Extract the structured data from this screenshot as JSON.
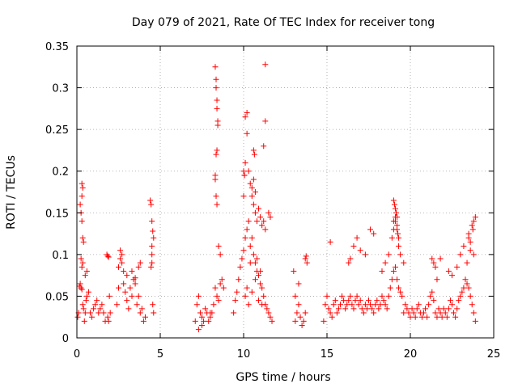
{
  "chart_data": {
    "type": "scatter",
    "title": "Day 079 of 2021, Rate Of TEC Index for receiver tong",
    "xlabel": "GPS time / hours",
    "ylabel": "ROTI / TECUs",
    "xlim": [
      0,
      25
    ],
    "ylim": [
      0,
      0.35
    ],
    "xticks": [
      "0",
      "5",
      "10",
      "15",
      "20",
      "25"
    ],
    "yticks": [
      "0",
      "0.05",
      "0.1",
      "0.15",
      "0.2",
      "0.25",
      "0.3",
      "0.35"
    ],
    "grid": true,
    "marker": "+",
    "color": "#ff0000",
    "series": [
      {
        "name": "ROTI",
        "x": [
          0.05,
          0.1,
          0.15,
          0.2,
          0.25,
          0.3,
          0.35,
          0.4,
          0.45,
          0.5,
          0.55,
          0.6,
          0.7,
          0.8,
          0.9,
          1.0,
          1.1,
          1.2,
          1.3,
          1.4,
          1.5,
          1.6,
          1.7,
          0.2,
          0.25,
          0.3,
          0.3,
          0.3,
          0.35,
          0.35,
          0.4,
          0.25,
          0.3,
          0.35,
          0.5,
          0.6,
          1.8,
          1.85,
          1.9,
          1.95,
          2.0,
          1.85,
          1.9,
          2.4,
          2.5,
          2.6,
          2.7,
          2.8,
          2.9,
          3.0,
          3.1,
          3.2,
          3.3,
          3.4,
          3.5,
          3.6,
          3.7,
          3.8,
          3.9,
          4.0,
          4.1,
          2.6,
          2.7,
          2.5,
          3.0,
          3.3,
          3.5,
          3.7,
          3.8,
          2.8,
          4.4,
          4.45,
          4.5,
          4.55,
          4.6,
          4.5,
          4.5,
          4.5,
          4.45,
          4.55,
          4.6,
          7.1,
          7.2,
          7.3,
          7.4,
          7.5,
          7.6,
          7.7,
          7.8,
          7.9,
          8.0,
          8.1,
          8.2,
          8.3,
          8.4,
          8.5,
          8.6,
          8.7,
          8.8,
          7.3,
          7.5,
          8.0,
          8.3,
          8.35,
          8.35,
          8.4,
          8.4,
          8.45,
          8.45,
          8.35,
          8.4,
          8.3,
          8.3,
          8.35,
          8.4,
          8.5,
          8.6,
          9.4,
          9.5,
          9.6,
          9.7,
          9.8,
          9.9,
          10.0,
          10.1,
          10.2,
          10.3,
          10.4,
          10.5,
          10.6,
          10.7,
          10.8,
          10.9,
          11.0,
          11.1,
          11.2,
          11.3,
          11.4,
          11.5,
          11.6,
          11.7,
          10.0,
          10.05,
          10.1,
          10.1,
          10.2,
          10.2,
          10.3,
          10.4,
          10.5,
          10.6,
          10.7,
          10.8,
          10.5,
          10.6,
          10.7,
          10.9,
          11.0,
          11.1,
          11.2,
          11.3,
          11.5,
          11.6,
          10.1,
          10.2,
          10.3,
          10.5,
          10.7,
          10.9,
          11.1,
          10.4,
          10.8,
          11.0,
          11.3,
          11.3,
          11.2,
          10.6,
          10.65,
          10.0,
          10.05,
          13.0,
          13.1,
          13.2,
          13.3,
          13.4,
          13.5,
          13.6,
          13.7,
          13.8,
          13.1,
          13.3,
          13.7,
          13.75,
          14.8,
          14.9,
          15.0,
          15.1,
          15.2,
          15.3,
          15.4,
          15.5,
          15.6,
          15.7,
          15.8,
          15.9,
          16.0,
          16.1,
          16.2,
          16.3,
          16.4,
          16.5,
          16.6,
          16.7,
          16.8,
          16.9,
          17.0,
          17.1,
          17.2,
          17.3,
          17.4,
          17.5,
          17.6,
          17.7,
          17.8,
          17.9,
          18.0,
          18.1,
          18.2,
          18.3,
          18.4,
          18.5,
          18.6,
          18.7,
          18.8,
          18.9,
          19.0,
          19.1,
          19.2,
          19.3,
          19.4,
          19.5,
          15.2,
          16.3,
          16.4,
          16.6,
          16.8,
          17.0,
          17.3,
          17.6,
          17.8,
          18.3,
          18.5,
          18.7,
          18.9,
          19.0,
          19.1,
          19.2,
          19.3,
          19.4,
          19.6,
          19.0,
          19.05,
          19.1,
          19.15,
          19.2,
          19.1,
          19.0,
          19.2,
          19.3,
          19.25,
          19.6,
          19.7,
          19.8,
          19.9,
          20.0,
          20.1,
          20.2,
          20.3,
          20.4,
          20.5,
          20.6,
          20.7,
          20.8,
          20.9,
          21.0,
          21.1,
          21.2,
          21.3,
          21.4,
          21.5,
          21.6,
          21.7,
          21.8,
          21.9,
          22.0,
          22.1,
          22.2,
          22.3,
          22.4,
          22.5,
          22.6,
          22.7,
          22.8,
          22.9,
          23.0,
          23.1,
          23.2,
          23.3,
          23.4,
          23.5,
          23.6,
          23.7,
          23.8,
          23.9,
          21.3,
          21.4,
          21.5,
          21.6,
          21.8,
          22.3,
          22.5,
          22.8,
          23.0,
          23.2,
          23.4,
          23.5,
          23.6,
          23.7,
          23.8,
          23.9,
          23.5,
          23.6,
          23.75,
          23.8
        ],
        "y": [
          0.025,
          0.03,
          0.062,
          0.065,
          0.06,
          0.058,
          0.04,
          0.035,
          0.02,
          0.03,
          0.045,
          0.05,
          0.055,
          0.03,
          0.025,
          0.035,
          0.04,
          0.045,
          0.03,
          0.035,
          0.04,
          0.03,
          0.02,
          0.16,
          0.15,
          0.14,
          0.17,
          0.185,
          0.18,
          0.12,
          0.115,
          0.095,
          0.085,
          0.09,
          0.075,
          0.08,
          0.1,
          0.098,
          0.097,
          0.05,
          0.03,
          0.025,
          0.02,
          0.04,
          0.06,
          0.095,
          0.1,
          0.08,
          0.055,
          0.045,
          0.035,
          0.06,
          0.05,
          0.07,
          0.065,
          0.04,
          0.05,
          0.03,
          0.035,
          0.02,
          0.025,
          0.105,
          0.09,
          0.085,
          0.075,
          0.08,
          0.072,
          0.085,
          0.09,
          0.065,
          0.165,
          0.16,
          0.14,
          0.128,
          0.12,
          0.11,
          0.1,
          0.09,
          0.085,
          0.04,
          0.03,
          0.02,
          0.04,
          0.05,
          0.03,
          0.025,
          0.02,
          0.035,
          0.03,
          0.02,
          0.025,
          0.03,
          0.04,
          0.06,
          0.05,
          0.045,
          0.065,
          0.07,
          0.06,
          0.01,
          0.015,
          0.03,
          0.325,
          0.31,
          0.3,
          0.285,
          0.275,
          0.26,
          0.255,
          0.22,
          0.225,
          0.195,
          0.19,
          0.17,
          0.16,
          0.11,
          0.1,
          0.03,
          0.045,
          0.055,
          0.07,
          0.085,
          0.095,
          0.105,
          0.12,
          0.13,
          0.14,
          0.11,
          0.12,
          0.1,
          0.09,
          0.08,
          0.075,
          0.065,
          0.06,
          0.05,
          0.04,
          0.035,
          0.03,
          0.025,
          0.02,
          0.17,
          0.195,
          0.21,
          0.265,
          0.27,
          0.245,
          0.2,
          0.185,
          0.17,
          0.16,
          0.15,
          0.14,
          0.18,
          0.19,
          0.175,
          0.155,
          0.145,
          0.135,
          0.14,
          0.13,
          0.15,
          0.145,
          0.05,
          0.06,
          0.04,
          0.055,
          0.07,
          0.045,
          0.04,
          0.09,
          0.095,
          0.08,
          0.328,
          0.26,
          0.23,
          0.225,
          0.22,
          0.2,
          0.195,
          0.08,
          0.02,
          0.03,
          0.04,
          0.025,
          0.015,
          0.02,
          0.03,
          0.09,
          0.05,
          0.065,
          0.095,
          0.098,
          0.02,
          0.04,
          0.05,
          0.035,
          0.03,
          0.025,
          0.04,
          0.045,
          0.03,
          0.035,
          0.04,
          0.05,
          0.045,
          0.035,
          0.04,
          0.045,
          0.05,
          0.04,
          0.035,
          0.045,
          0.05,
          0.04,
          0.045,
          0.035,
          0.03,
          0.04,
          0.035,
          0.045,
          0.04,
          0.035,
          0.03,
          0.04,
          0.045,
          0.035,
          0.04,
          0.05,
          0.045,
          0.04,
          0.035,
          0.05,
          0.06,
          0.07,
          0.08,
          0.085,
          0.07,
          0.06,
          0.055,
          0.05,
          0.115,
          0.09,
          0.095,
          0.11,
          0.12,
          0.105,
          0.1,
          0.13,
          0.125,
          0.08,
          0.09,
          0.1,
          0.12,
          0.14,
          0.145,
          0.13,
          0.11,
          0.1,
          0.09,
          0.165,
          0.16,
          0.155,
          0.15,
          0.145,
          0.14,
          0.13,
          0.135,
          0.12,
          0.125,
          0.03,
          0.04,
          0.035,
          0.03,
          0.025,
          0.035,
          0.03,
          0.025,
          0.035,
          0.04,
          0.03,
          0.025,
          0.03,
          0.035,
          0.025,
          0.04,
          0.05,
          0.055,
          0.045,
          0.03,
          0.025,
          0.035,
          0.03,
          0.025,
          0.035,
          0.03,
          0.025,
          0.035,
          0.045,
          0.04,
          0.03,
          0.025,
          0.035,
          0.045,
          0.05,
          0.055,
          0.06,
          0.07,
          0.065,
          0.06,
          0.05,
          0.04,
          0.03,
          0.02,
          0.095,
          0.09,
          0.085,
          0.07,
          0.095,
          0.08,
          0.075,
          0.085,
          0.1,
          0.11,
          0.09,
          0.12,
          0.105,
          0.135,
          0.14,
          0.145,
          0.125,
          0.115,
          0.13,
          0.1
        ]
      }
    ]
  }
}
